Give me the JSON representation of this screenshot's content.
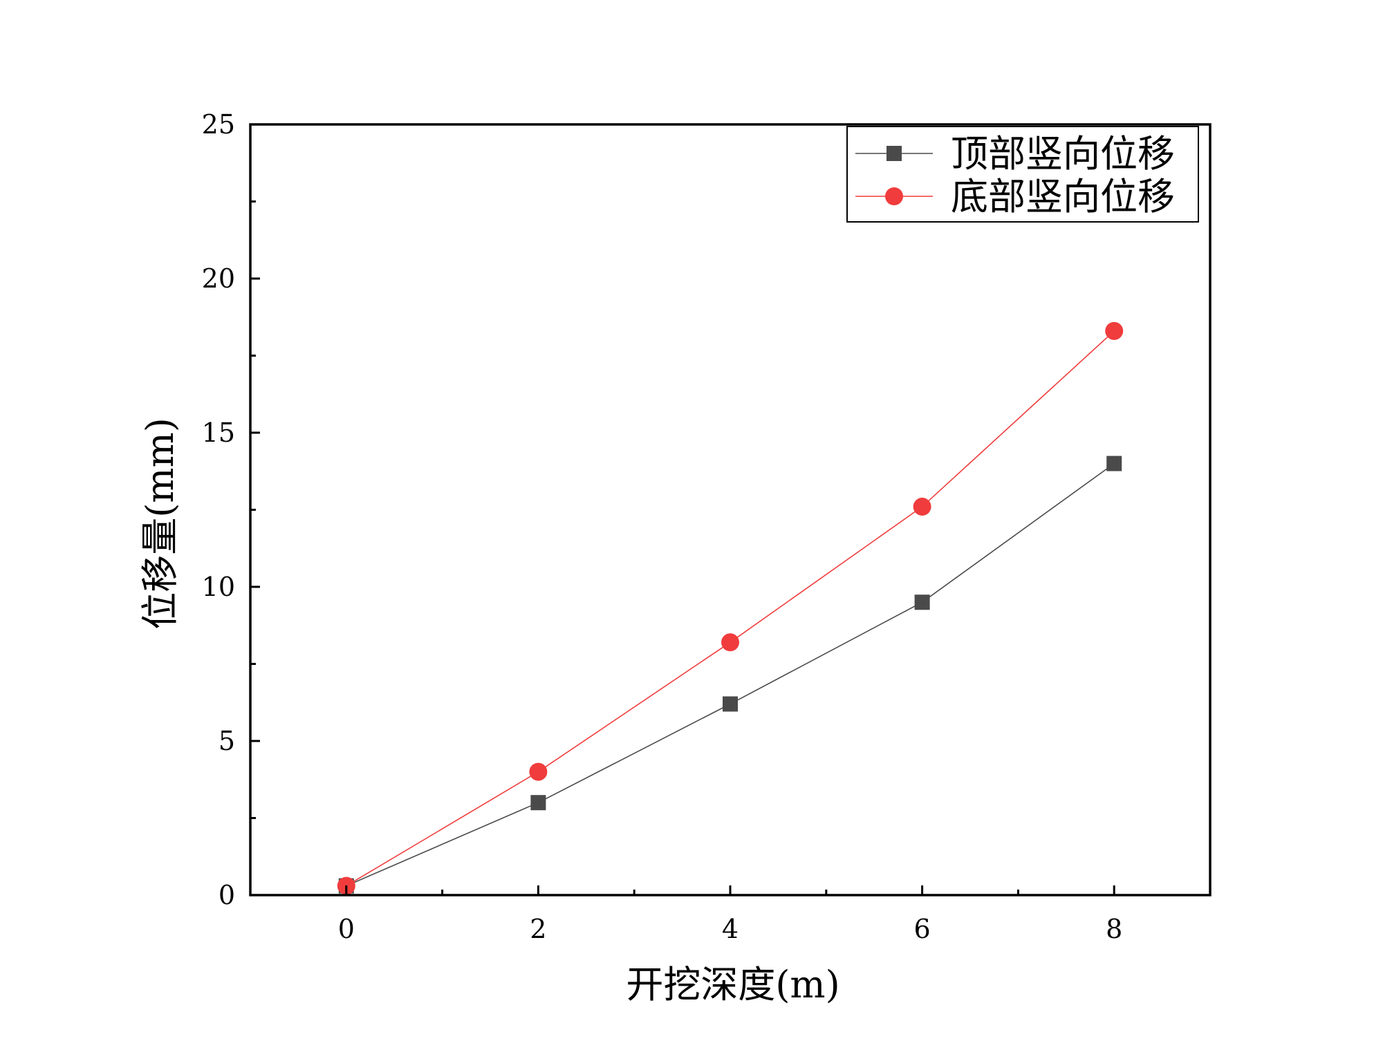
{
  "chart_data": {
    "type": "line",
    "xlabel": "开挖深度(m)",
    "ylabel": "位移量(mm)",
    "xlim": [
      -1,
      9
    ],
    "ylim": [
      0,
      25
    ],
    "x_ticks": [
      0,
      2,
      4,
      6,
      8
    ],
    "x_minor_ticks": [
      1,
      3,
      5,
      7
    ],
    "y_ticks": [
      0,
      5,
      10,
      15,
      20,
      25
    ],
    "y_minor_ticks": [
      2.5,
      7.5,
      12.5,
      17.5,
      22.5
    ],
    "x_tick_labels": [
      "0",
      "2",
      "4",
      "6",
      "8"
    ],
    "y_tick_labels": [
      "0",
      "5",
      "10",
      "15",
      "20",
      "25"
    ],
    "grid": false,
    "legend_position": "top-right",
    "x": [
      0,
      2,
      4,
      6,
      8
    ],
    "series": [
      {
        "name": "顶部竖向位移",
        "marker": "square",
        "color": "#4a4a4a",
        "values": [
          0.3,
          3.0,
          6.2,
          9.5,
          14.0
        ]
      },
      {
        "name": "底部竖向位移",
        "marker": "circle",
        "color": "#f03c3c",
        "values": [
          0.3,
          4.0,
          8.2,
          12.6,
          18.3
        ]
      }
    ]
  }
}
